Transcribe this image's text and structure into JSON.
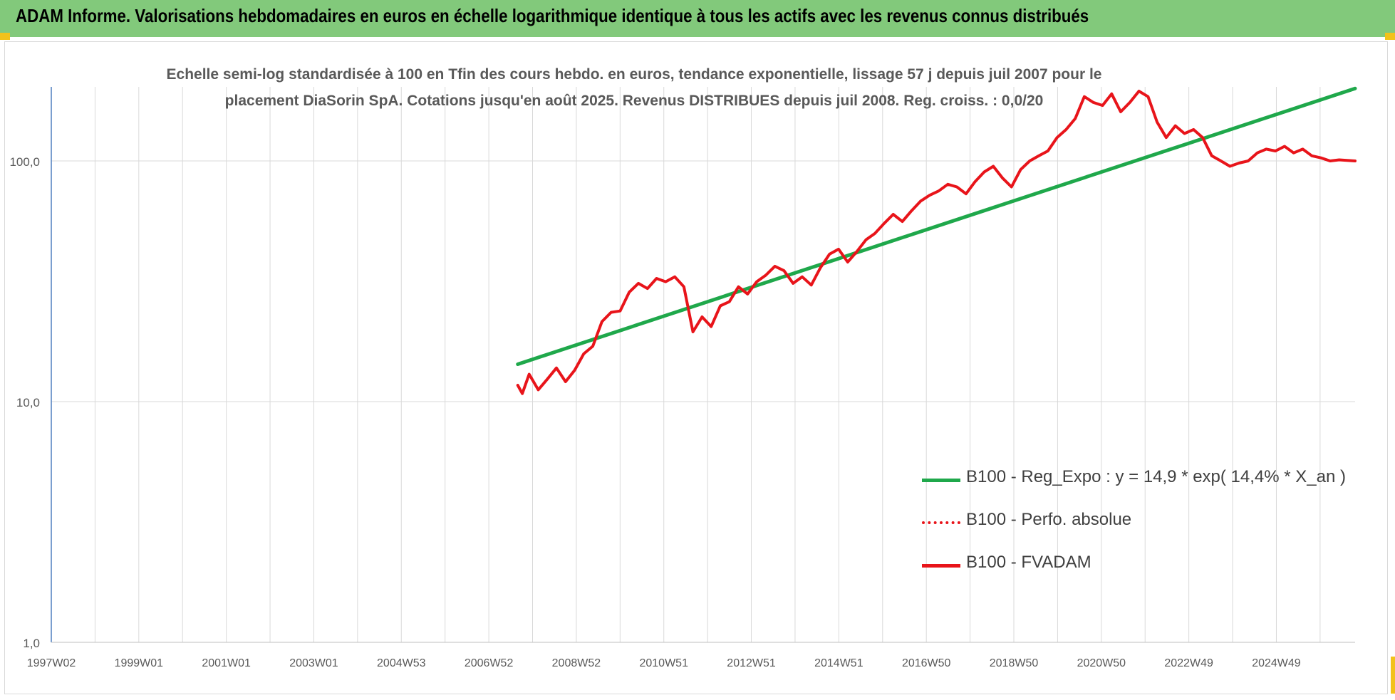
{
  "header": {
    "title": "ADAM Informe. Valorisations hebdomadaires en euros en échelle logarithmique identique à tous les actifs avec les revenus connus distribués"
  },
  "colors": {
    "header_bg": "#82c97b",
    "corner_marks": "#f2c21a",
    "trend_line": "#1fa84b",
    "fvadam_line": "#e8141a",
    "perf_line": "#e8141a",
    "grid": "#d9d9d9",
    "axis_text": "#595959"
  },
  "chart_data": {
    "type": "line",
    "title_lines": [
      "Echelle semi-log standardisée à 100 en Tfin des cours hebdo. en euros, tendance exponentielle, lissage 57 j depuis juil 2007 pour le",
      "placement DiaSorin SpA. Cotations jusqu'en août 2025. Revenus DISTRIBUES depuis juil 2008. Reg. croiss. : 0,0/20"
    ],
    "y_scale": "log",
    "ylim": [
      1,
      200
    ],
    "y_ticks": [
      "1,0",
      "10,0",
      "100,0"
    ],
    "x_tick_labels": [
      "1997W02",
      "1999W01",
      "2001W01",
      "2003W01",
      "2004W53",
      "2006W52",
      "2008W52",
      "2010W51",
      "2012W51",
      "2014W51",
      "2016W50",
      "2018W50",
      "2020W50",
      "2022W49",
      "2024W49"
    ],
    "xlim": [
      1997.0,
      2025.65
    ],
    "grid": true,
    "legend_position": "right",
    "legend": [
      {
        "label": "B100 - Reg_Expo : y = 14,9 * exp( 14,4% *  X_an )",
        "style": "solid-thick",
        "color": "#1fa84b"
      },
      {
        "label": "B100 - Perfo. absolue",
        "style": "dotted",
        "color": "#e8141a"
      },
      {
        "label": "B100 - FVADAM",
        "style": "solid",
        "color": "#e8141a"
      }
    ],
    "series": [
      {
        "name": "B100 - Reg_Expo : y = 14,9 * exp( 14,4% *  X_an )",
        "x": [
          2007.25,
          2025.65
        ],
        "values": [
          14.3,
          200
        ]
      },
      {
        "name": "B100 - FVADAM",
        "x": [
          2007.25,
          2007.35,
          2007.5,
          2007.7,
          2007.9,
          2008.1,
          2008.3,
          2008.5,
          2008.7,
          2008.9,
          2009.1,
          2009.3,
          2009.5,
          2009.7,
          2009.9,
          2010.1,
          2010.3,
          2010.5,
          2010.7,
          2010.9,
          2011.1,
          2011.3,
          2011.5,
          2011.7,
          2011.9,
          2012.1,
          2012.3,
          2012.5,
          2012.7,
          2012.9,
          2013.1,
          2013.3,
          2013.5,
          2013.7,
          2013.9,
          2014.1,
          2014.3,
          2014.5,
          2014.7,
          2014.9,
          2015.1,
          2015.3,
          2015.5,
          2015.7,
          2015.9,
          2016.1,
          2016.3,
          2016.5,
          2016.7,
          2016.9,
          2017.1,
          2017.3,
          2017.5,
          2017.7,
          2017.9,
          2018.1,
          2018.3,
          2018.5,
          2018.7,
          2018.9,
          2019.1,
          2019.3,
          2019.5,
          2019.7,
          2019.9,
          2020.1,
          2020.3,
          2020.5,
          2020.7,
          2020.9,
          2021.1,
          2021.3,
          2021.5,
          2021.7,
          2021.9,
          2022.1,
          2022.3,
          2022.5,
          2022.7,
          2022.9,
          2023.1,
          2023.3,
          2023.5,
          2023.7,
          2023.9,
          2024.1,
          2024.3,
          2024.5,
          2024.7,
          2024.9,
          2025.1,
          2025.3,
          2025.65
        ],
        "values": [
          11.7,
          10.8,
          13.0,
          11.2,
          12.4,
          13.8,
          12.1,
          13.5,
          15.8,
          17.0,
          21.5,
          23.5,
          23.8,
          28.5,
          31.0,
          29.5,
          32.5,
          31.5,
          33.0,
          30.0,
          19.5,
          22.5,
          20.5,
          25.0,
          26.0,
          30.0,
          28.0,
          31.5,
          33.5,
          36.5,
          35.0,
          31.0,
          33.0,
          30.5,
          36.0,
          41.0,
          43.0,
          38.0,
          42.0,
          47.0,
          50.0,
          55.0,
          60.0,
          56.0,
          62.0,
          68.0,
          72.0,
          75.0,
          80.0,
          78.0,
          73.0,
          82.0,
          90.0,
          95.0,
          85.0,
          78.0,
          92.0,
          100.0,
          105.0,
          110.0,
          125.0,
          135.0,
          150.0,
          185.0,
          175.0,
          170.0,
          190.0,
          160.0,
          175.0,
          195.0,
          185.0,
          145.0,
          125.0,
          140.0,
          130.0,
          135.0,
          125.0,
          105.0,
          100.0,
          95.0,
          98.0,
          100.0,
          108.0,
          112.0,
          110.0,
          115.0,
          108.0,
          112.0,
          105.0,
          103.0,
          100.0,
          101.0,
          100.0
        ]
      }
    ]
  }
}
